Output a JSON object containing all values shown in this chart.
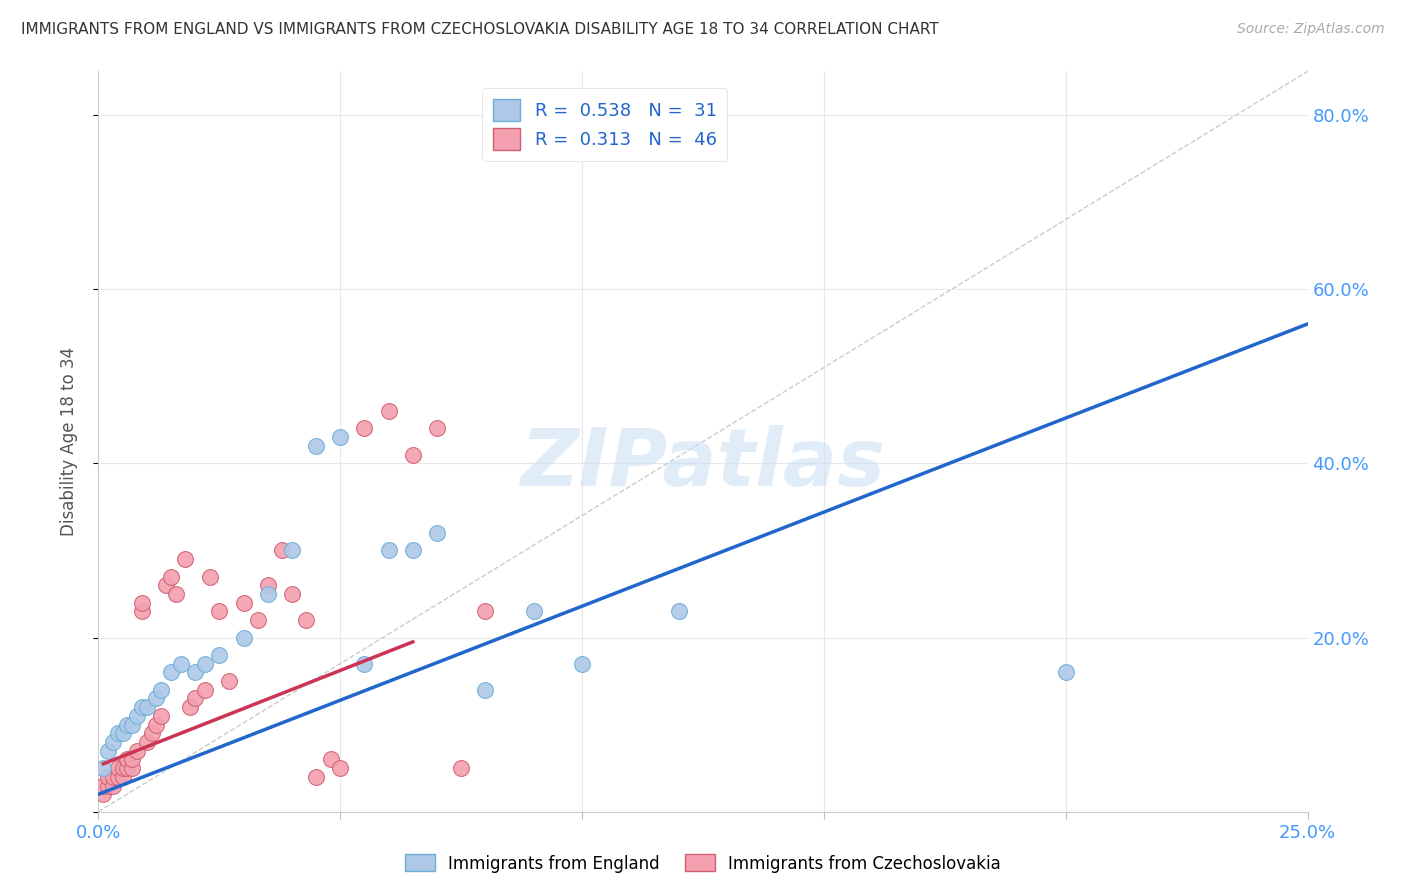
{
  "title": "IMMIGRANTS FROM ENGLAND VS IMMIGRANTS FROM CZECHOSLOVAKIA DISABILITY AGE 18 TO 34 CORRELATION CHART",
  "source": "Source: ZipAtlas.com",
  "ylabel": "Disability Age 18 to 34",
  "xlim": [
    0.0,
    0.25
  ],
  "ylim": [
    0.0,
    0.85
  ],
  "x_ticks": [
    0.0,
    0.05,
    0.1,
    0.15,
    0.2,
    0.25
  ],
  "y_ticks": [
    0.0,
    0.2,
    0.4,
    0.6,
    0.8
  ],
  "england_color": "#aec8e8",
  "england_edge_color": "#6baed6",
  "czechoslovakia_color": "#f4a0b0",
  "czechoslovakia_edge_color": "#d06070",
  "england_R": 0.538,
  "england_N": 31,
  "czechoslovakia_R": 0.313,
  "czechoslovakia_N": 46,
  "legend_label_england": "Immigrants from England",
  "legend_label_czechoslovakia": "Immigrants from Czechoslovakia",
  "england_scatter_x": [
    0.001,
    0.002,
    0.003,
    0.004,
    0.005,
    0.006,
    0.007,
    0.008,
    0.009,
    0.01,
    0.012,
    0.013,
    0.015,
    0.017,
    0.02,
    0.022,
    0.025,
    0.03,
    0.035,
    0.04,
    0.045,
    0.05,
    0.055,
    0.06,
    0.065,
    0.07,
    0.08,
    0.09,
    0.1,
    0.12,
    0.2
  ],
  "england_scatter_y": [
    0.05,
    0.07,
    0.08,
    0.09,
    0.09,
    0.1,
    0.1,
    0.11,
    0.12,
    0.12,
    0.13,
    0.14,
    0.16,
    0.17,
    0.16,
    0.17,
    0.18,
    0.2,
    0.25,
    0.3,
    0.42,
    0.43,
    0.17,
    0.3,
    0.3,
    0.32,
    0.14,
    0.23,
    0.17,
    0.23,
    0.16
  ],
  "czechoslovakia_scatter_x": [
    0.001,
    0.001,
    0.002,
    0.002,
    0.003,
    0.003,
    0.004,
    0.004,
    0.005,
    0.005,
    0.006,
    0.006,
    0.007,
    0.007,
    0.008,
    0.009,
    0.009,
    0.01,
    0.011,
    0.012,
    0.013,
    0.014,
    0.015,
    0.016,
    0.018,
    0.019,
    0.02,
    0.022,
    0.023,
    0.025,
    0.027,
    0.03,
    0.033,
    0.035,
    0.038,
    0.04,
    0.043,
    0.045,
    0.048,
    0.05,
    0.055,
    0.06,
    0.065,
    0.07,
    0.075,
    0.08
  ],
  "czechoslovakia_scatter_y": [
    0.02,
    0.03,
    0.03,
    0.04,
    0.03,
    0.04,
    0.04,
    0.05,
    0.04,
    0.05,
    0.05,
    0.06,
    0.05,
    0.06,
    0.07,
    0.23,
    0.24,
    0.08,
    0.09,
    0.1,
    0.11,
    0.26,
    0.27,
    0.25,
    0.29,
    0.12,
    0.13,
    0.14,
    0.27,
    0.23,
    0.15,
    0.24,
    0.22,
    0.26,
    0.3,
    0.25,
    0.22,
    0.04,
    0.06,
    0.05,
    0.44,
    0.46,
    0.41,
    0.44,
    0.05,
    0.23
  ],
  "england_line_color": "#2266cc",
  "czechoslovakia_line_color": "#cc3355",
  "england_line_x": [
    0.0,
    0.25
  ],
  "england_line_y": [
    0.02,
    0.56
  ],
  "czechoslovakia_line_x": [
    0.001,
    0.065
  ],
  "czechoslovakia_line_y": [
    0.055,
    0.195
  ],
  "diagonal_color": "#cccccc",
  "watermark_text": "ZIPatlas",
  "background_color": "#ffffff",
  "grid_color": "#e8e8e8",
  "tick_label_color": "#4499ff",
  "legend_text_color": "#2266cc"
}
